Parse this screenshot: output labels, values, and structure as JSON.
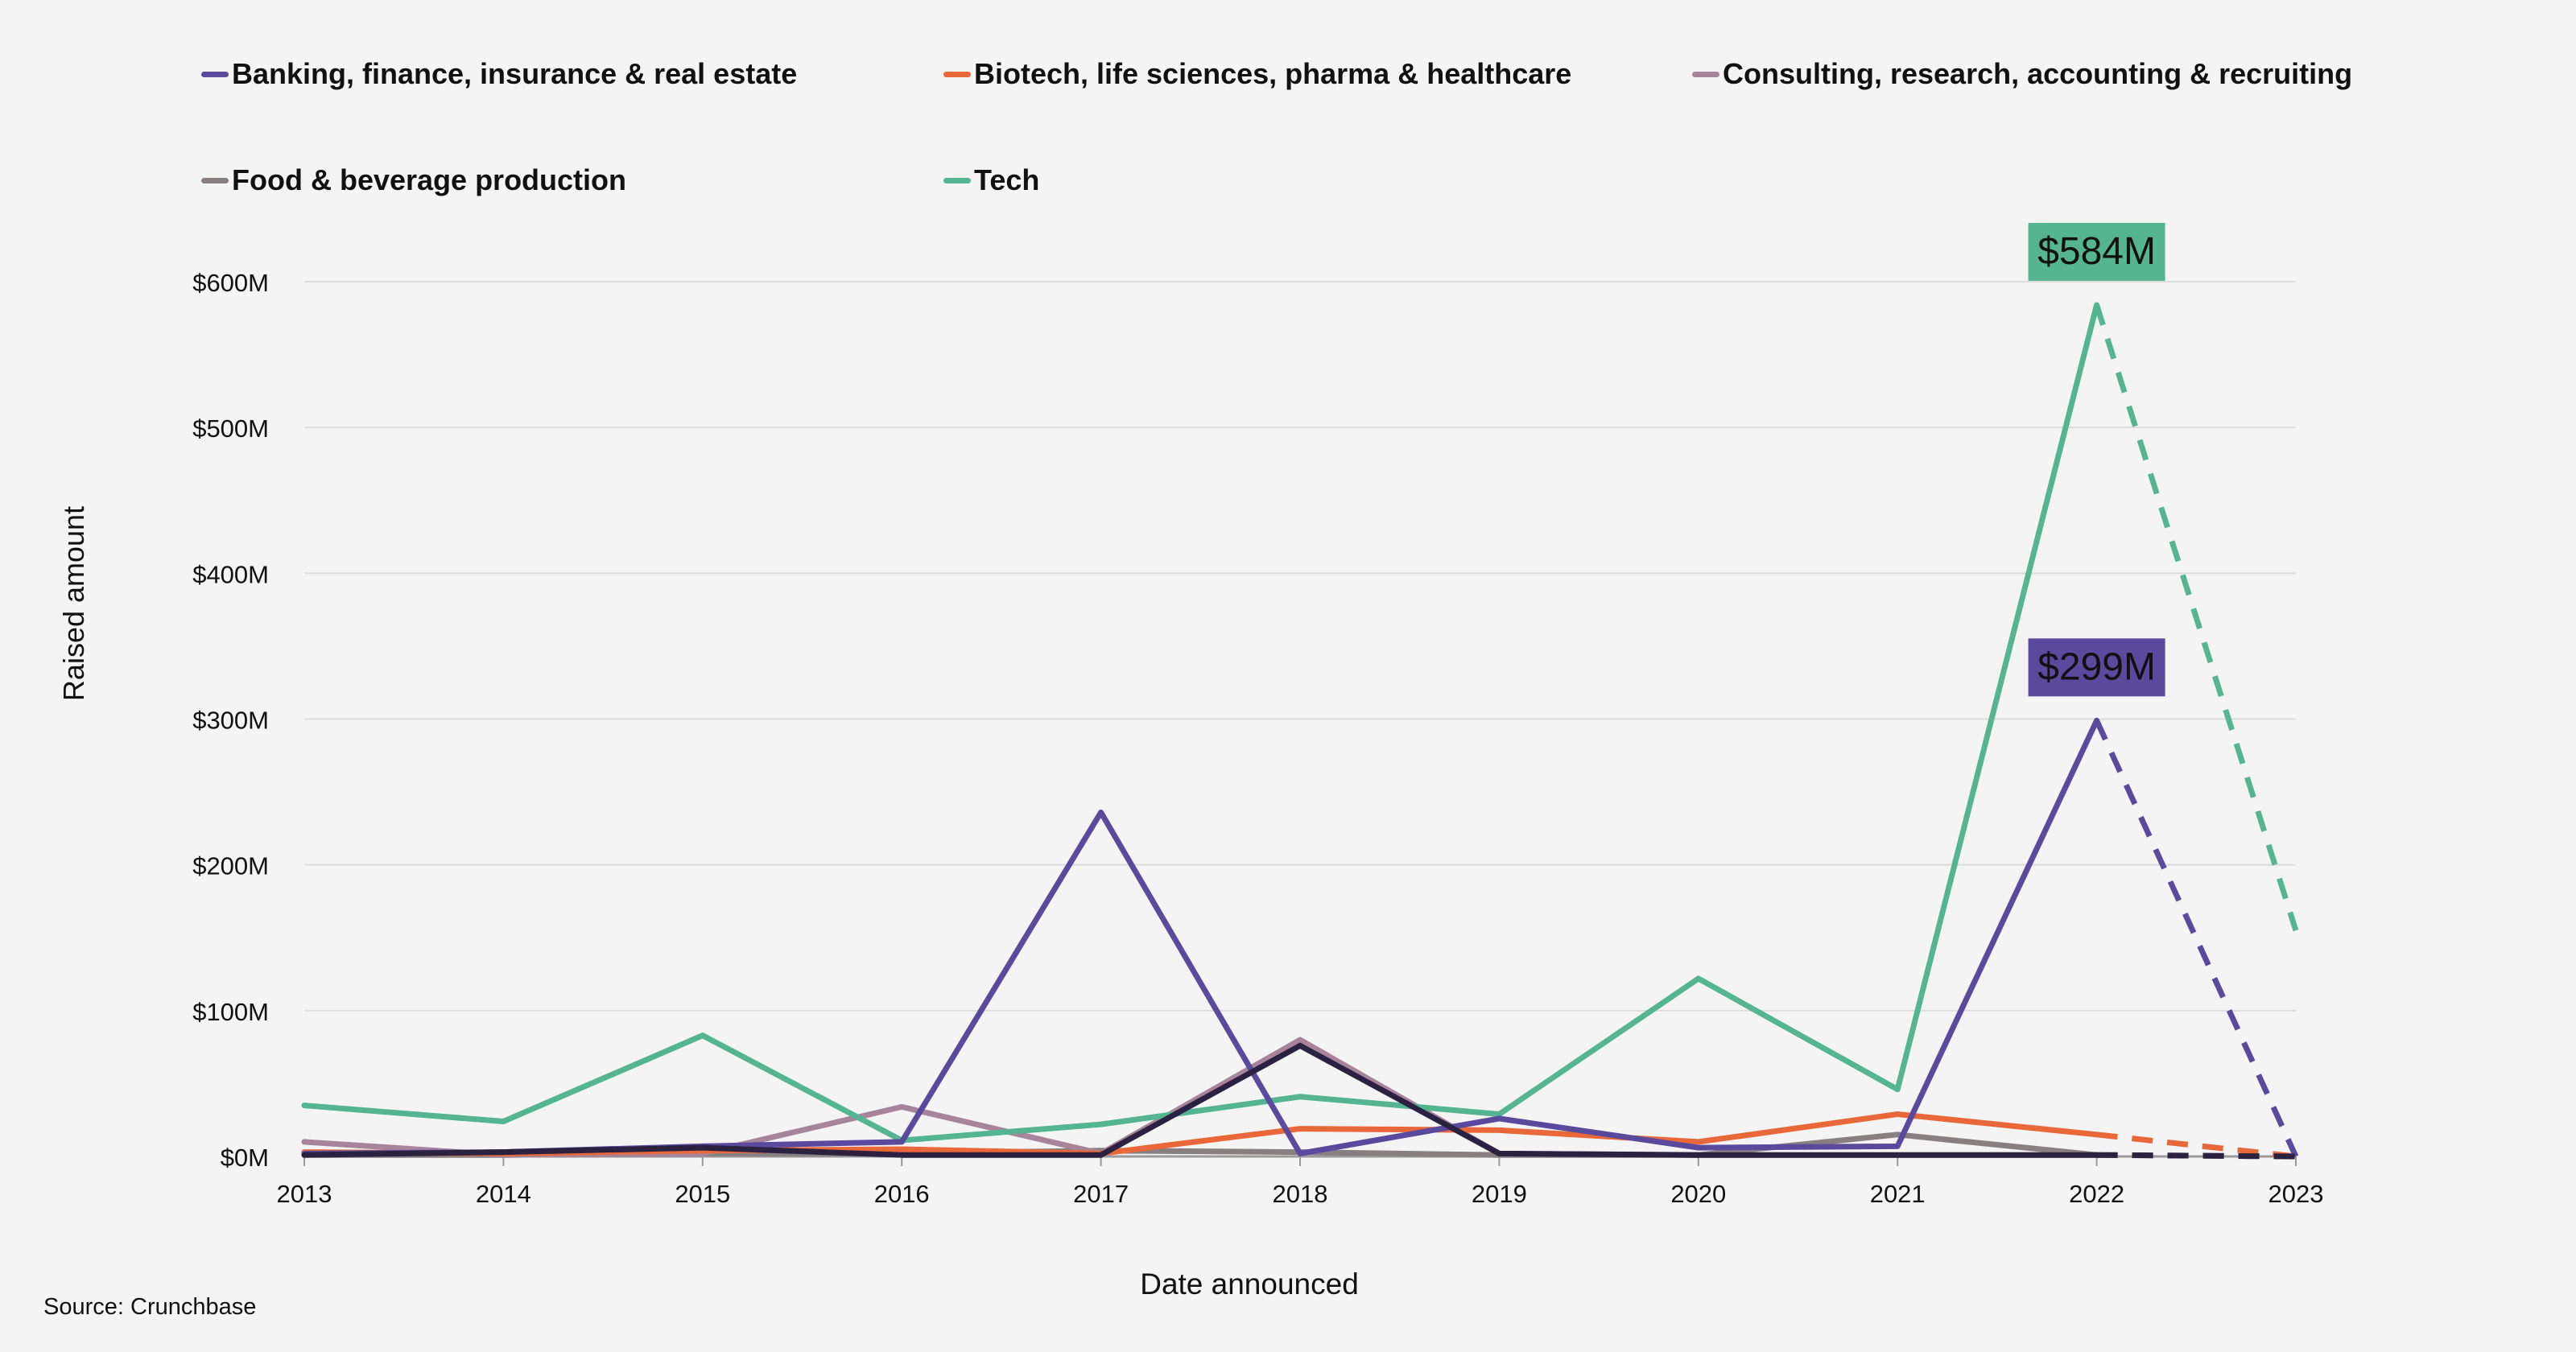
{
  "chart_data": {
    "type": "line",
    "title": "",
    "xlabel": "Date announced",
    "ylabel": "Raised amount",
    "ylim": [
      0,
      600
    ],
    "y_unit": "$M",
    "y_ticks": [
      "$0M",
      "$100M",
      "$200M",
      "$300M",
      "$400M",
      "$500M",
      "$600M"
    ],
    "y_tick_values": [
      0,
      100,
      200,
      300,
      400,
      500,
      600
    ],
    "categories": [
      "2013",
      "2014",
      "2015",
      "2016",
      "2017",
      "2018",
      "2019",
      "2020",
      "2021",
      "2022",
      "2023"
    ],
    "grid": true,
    "legend_position": "top",
    "projection_from_index": 9,
    "series": [
      {
        "name": "Banking, finance, insurance & real estate",
        "color": "#5a4a9e",
        "values": [
          2,
          3,
          7,
          10,
          236,
          2,
          26,
          6,
          7,
          299,
          0
        ]
      },
      {
        "name": "Biotech, life sciences, pharma & healthcare",
        "color": "#e8683a",
        "values": [
          3,
          2,
          4,
          5,
          2,
          19,
          18,
          10,
          29,
          15,
          0
        ]
      },
      {
        "name": "Consulting, research, accounting & recruiting",
        "color": "#a8849a",
        "values": [
          10,
          1,
          2,
          34,
          2,
          80,
          2,
          1,
          1,
          1,
          0
        ]
      },
      {
        "name": "Food & beverage production",
        "color": "#888080",
        "values": [
          1,
          1,
          2,
          2,
          4,
          3,
          1,
          1,
          15,
          1,
          0
        ]
      },
      {
        "name": "Tech",
        "color": "#55b593",
        "values": [
          35,
          24,
          83,
          11,
          22,
          41,
          29,
          122,
          46,
          584,
          155
        ]
      },
      {
        "name": "",
        "color": "#2a2240",
        "values": [
          1,
          3,
          6,
          1,
          1,
          76,
          2,
          1,
          1,
          1,
          0
        ],
        "in_legend": false
      }
    ],
    "annotations": [
      {
        "text": "$584M",
        "series": "Tech",
        "x": "2022",
        "y": 584,
        "color": "#55b593"
      },
      {
        "text": "$299M",
        "series": "Banking, finance, insurance & real estate",
        "x": "2022",
        "y": 299,
        "color": "#5a4a9e"
      }
    ]
  },
  "source": "Source: Crunchbase"
}
